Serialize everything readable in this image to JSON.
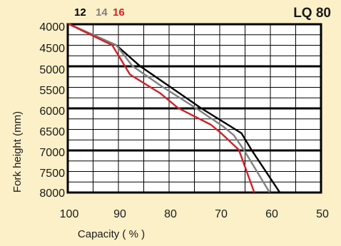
{
  "chart_data": {
    "type": "line",
    "title": "LQ 80",
    "xlabel": "Capacity ( % )",
    "ylabel": "Fork height (mm)",
    "xlim": [
      100,
      50
    ],
    "ylim": [
      4000,
      8000
    ],
    "x_ticks": [
      "100",
      "90",
      "80",
      "70",
      "60",
      "50"
    ],
    "y_ticks": [
      "4000",
      "4500",
      "5000",
      "5500",
      "6000",
      "6500",
      "7000",
      "7500",
      "8000"
    ],
    "y_axis_inverted": true,
    "grid": true,
    "legend": "top-left",
    "series": [
      {
        "name": "12",
        "color": "#000000",
        "points": [
          [
            100,
            4000
          ],
          [
            90.7,
            4500
          ],
          [
            86,
            5000
          ],
          [
            80,
            5500
          ],
          [
            74,
            6000
          ],
          [
            68,
            6450
          ],
          [
            66,
            6600
          ],
          [
            64,
            7000
          ],
          [
            58.5,
            8000
          ]
        ]
      },
      {
        "name": "14",
        "color": "#808080",
        "points": [
          [
            100,
            4000
          ],
          [
            90.7,
            4500
          ],
          [
            87.5,
            5000
          ],
          [
            81.5,
            5500
          ],
          [
            75,
            6000
          ],
          [
            69.5,
            6450
          ],
          [
            67.5,
            6650
          ],
          [
            65.5,
            7000
          ],
          [
            60.5,
            8000
          ]
        ]
      },
      {
        "name": "16",
        "color": "#d31f26",
        "points": [
          [
            100,
            4000
          ],
          [
            91.5,
            4500
          ],
          [
            89.5,
            4900
          ],
          [
            88,
            5200
          ],
          [
            82,
            5650
          ],
          [
            78.5,
            6000
          ],
          [
            72,
            6400
          ],
          [
            70,
            6600
          ],
          [
            66.5,
            7000
          ],
          [
            63.5,
            8000
          ]
        ]
      }
    ]
  }
}
